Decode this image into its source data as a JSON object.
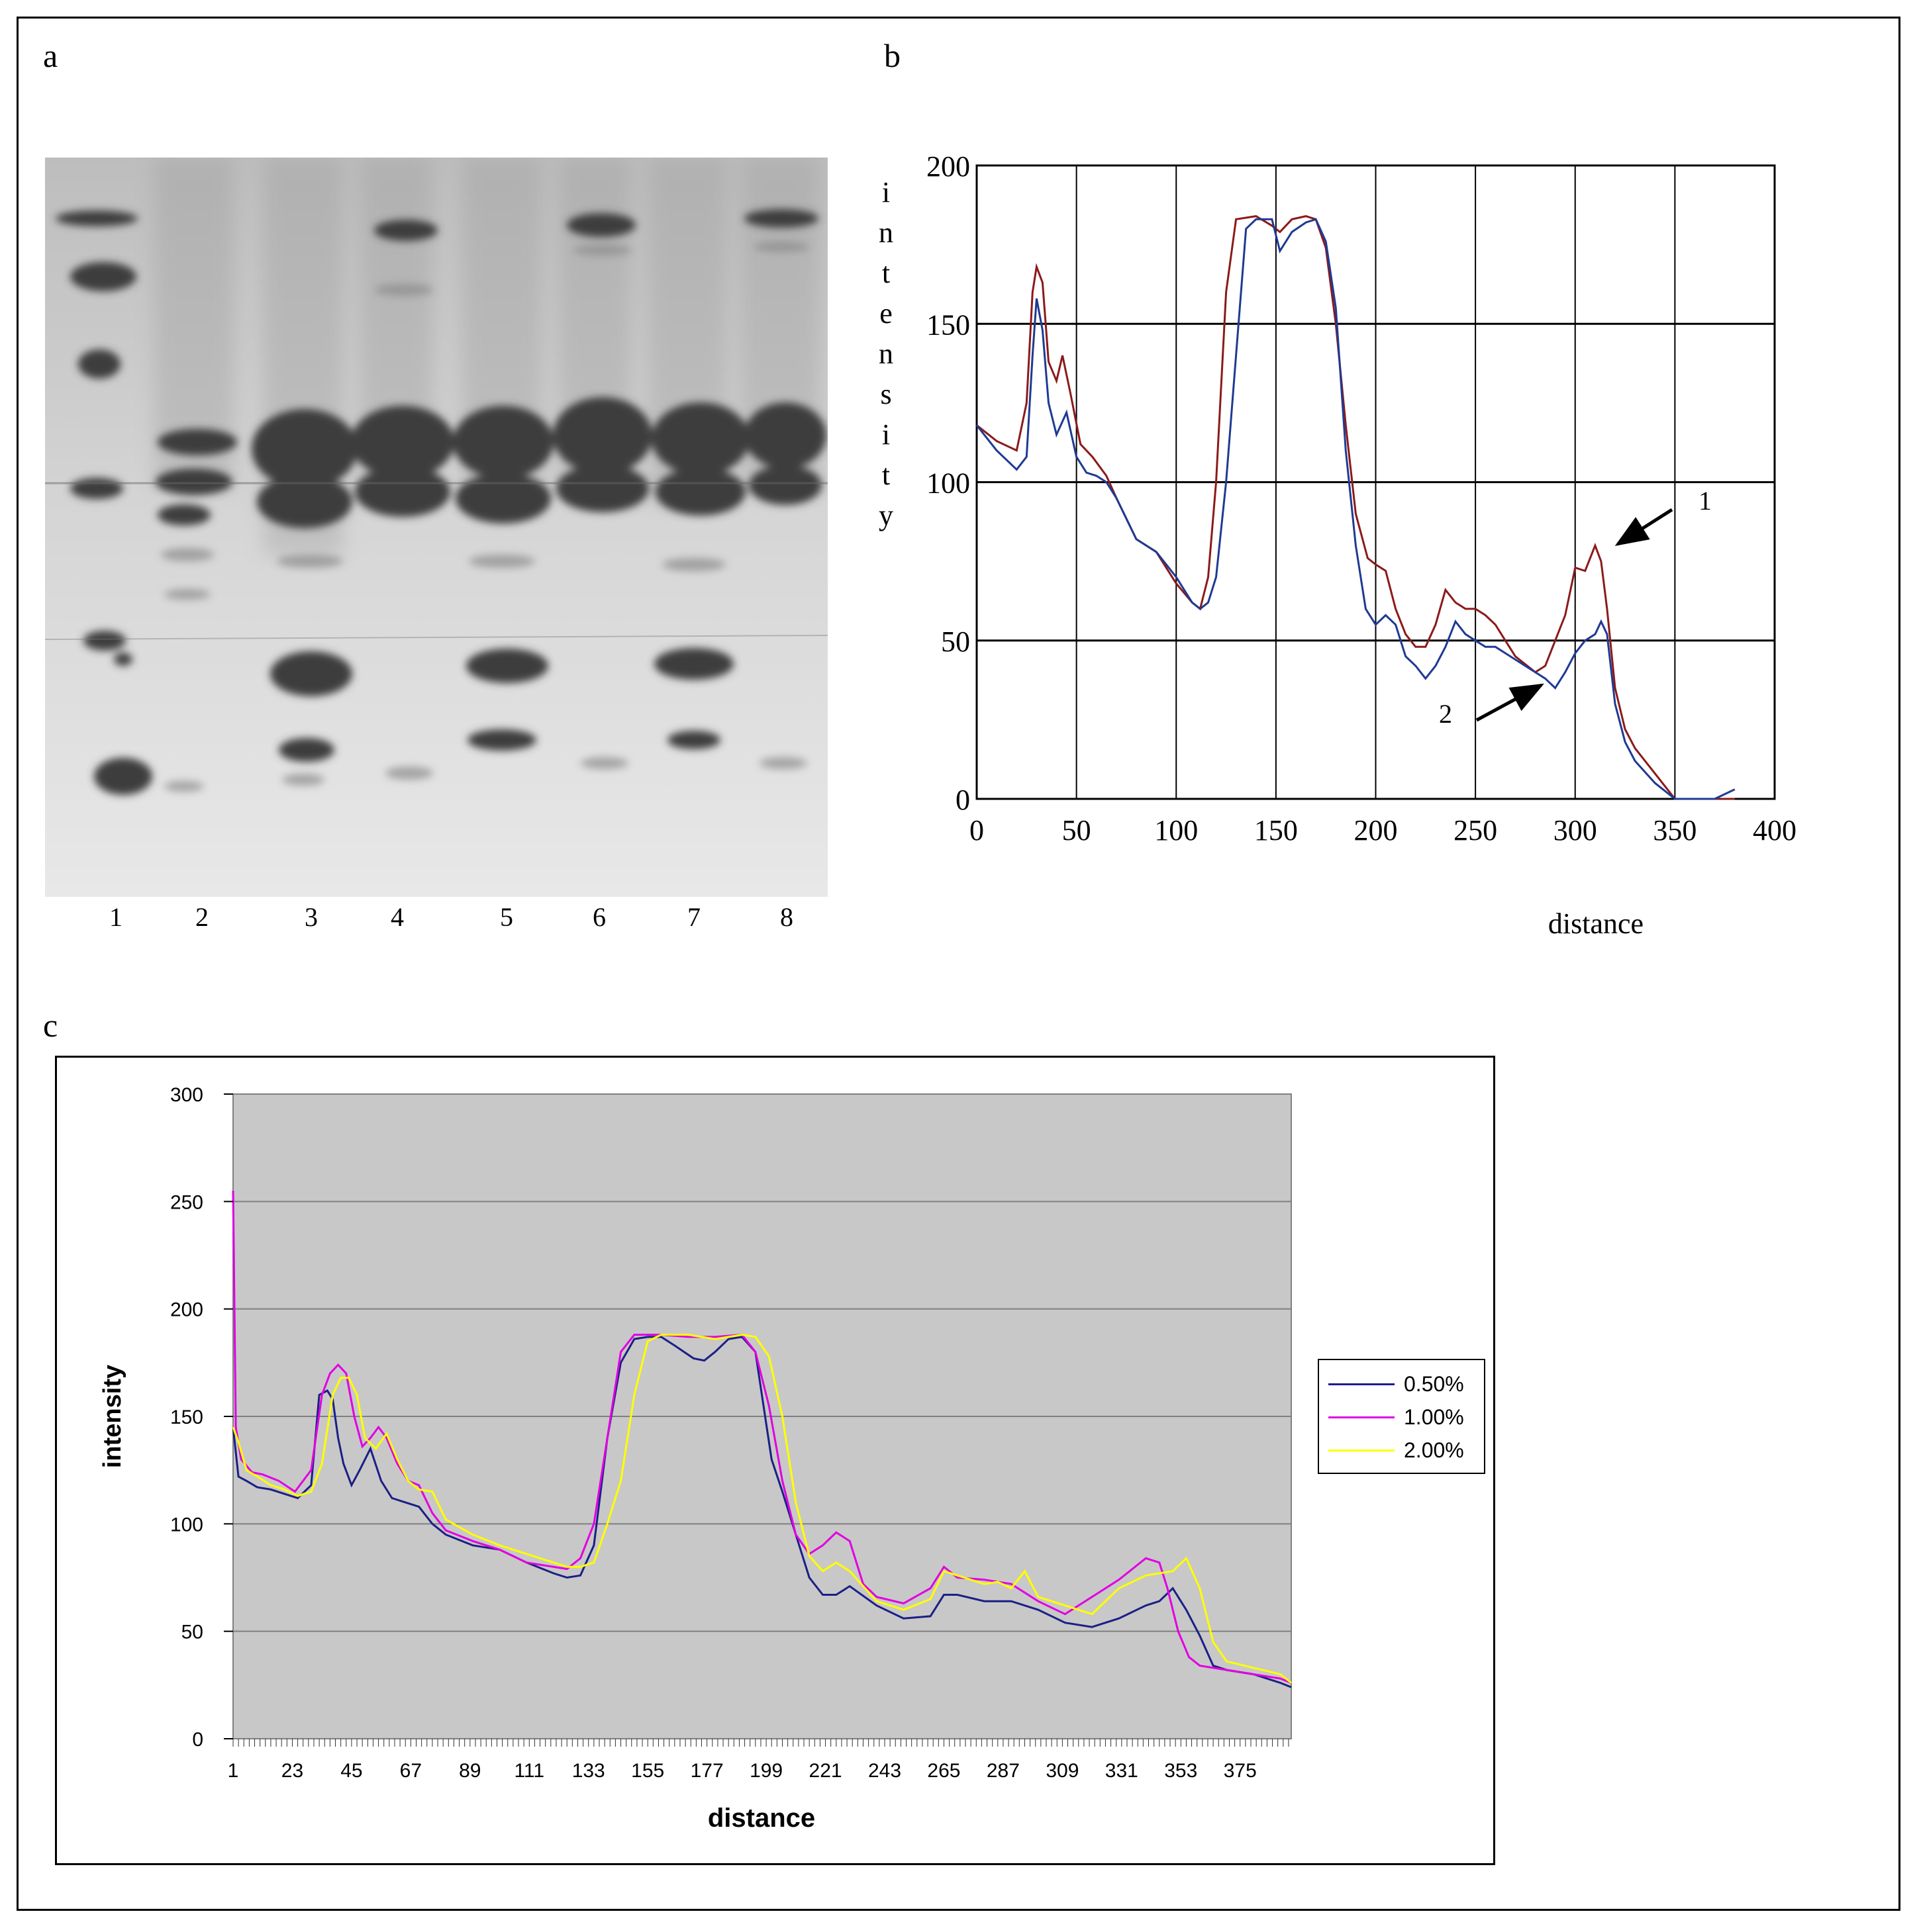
{
  "panels": {
    "a": "a",
    "b": "b",
    "c": "c"
  },
  "gel": {
    "lane_labels": [
      "1",
      "2",
      "3",
      "4",
      "5",
      "6",
      "7",
      "8"
    ]
  },
  "chart_data": [
    {
      "type": "line",
      "panel": "b",
      "title": "",
      "xlabel": "distance",
      "ylabel": "intensity",
      "xlim": [
        0,
        400
      ],
      "ylim": [
        0,
        200
      ],
      "xticks": [
        0,
        50,
        100,
        150,
        200,
        250,
        300,
        350,
        400
      ],
      "yticks": [
        0,
        50,
        100,
        150,
        200
      ],
      "grid": true,
      "annotations": [
        {
          "text": "1",
          "points_to": "series 1 peak near x=315"
        },
        {
          "text": "2",
          "points_to": "series 2 near x=285"
        }
      ],
      "series": [
        {
          "name": "1",
          "color": "#8b1a1a",
          "x": [
            0,
            10,
            20,
            25,
            28,
            30,
            33,
            36,
            40,
            43,
            47,
            52,
            58,
            65,
            70,
            80,
            90,
            100,
            108,
            112,
            116,
            120,
            125,
            130,
            140,
            148,
            152,
            158,
            165,
            170,
            175,
            180,
            185,
            190,
            196,
            200,
            205,
            210,
            215,
            220,
            225,
            230,
            235,
            240,
            245,
            250,
            255,
            260,
            265,
            270,
            280,
            285,
            290,
            295,
            300,
            305,
            310,
            313,
            316,
            320,
            325,
            330,
            340,
            350,
            360,
            370,
            380
          ],
          "y": [
            118,
            113,
            110,
            125,
            160,
            168,
            163,
            138,
            132,
            140,
            128,
            112,
            108,
            102,
            95,
            82,
            78,
            68,
            62,
            60,
            70,
            100,
            160,
            183,
            184,
            181,
            179,
            183,
            184,
            183,
            174,
            150,
            118,
            90,
            76,
            74,
            72,
            60,
            52,
            48,
            48,
            55,
            66,
            62,
            60,
            60,
            58,
            55,
            50,
            45,
            40,
            42,
            50,
            58,
            73,
            72,
            80,
            75,
            60,
            35,
            22,
            16,
            8,
            0,
            0,
            0,
            0
          ]
        },
        {
          "name": "2",
          "color": "#1f3a93",
          "x": [
            0,
            10,
            20,
            25,
            28,
            30,
            33,
            36,
            40,
            45,
            50,
            55,
            60,
            65,
            70,
            80,
            90,
            100,
            108,
            112,
            116,
            120,
            125,
            130,
            135,
            140,
            148,
            152,
            158,
            165,
            170,
            175,
            180,
            185,
            190,
            195,
            200,
            205,
            210,
            215,
            220,
            225,
            230,
            235,
            240,
            245,
            250,
            255,
            260,
            265,
            270,
            280,
            285,
            290,
            295,
            300,
            305,
            310,
            313,
            316,
            320,
            325,
            330,
            340,
            350,
            360,
            370,
            380
          ],
          "y": [
            118,
            110,
            104,
            108,
            140,
            158,
            148,
            125,
            115,
            122,
            108,
            103,
            102,
            100,
            95,
            82,
            78,
            70,
            62,
            60,
            62,
            70,
            100,
            140,
            180,
            183,
            183,
            173,
            179,
            182,
            183,
            176,
            155,
            110,
            80,
            60,
            55,
            58,
            55,
            45,
            42,
            38,
            42,
            48,
            56,
            52,
            50,
            48,
            48,
            46,
            44,
            40,
            38,
            35,
            40,
            46,
            50,
            52,
            56,
            52,
            30,
            18,
            12,
            5,
            0,
            0,
            0,
            3
          ]
        }
      ]
    },
    {
      "type": "line",
      "panel": "c",
      "title": "",
      "xlabel": "distance",
      "ylabel": "intensity",
      "xlim": [
        1,
        394
      ],
      "ylim": [
        0,
        300
      ],
      "xticks": [
        1,
        23,
        45,
        67,
        89,
        111,
        133,
        155,
        177,
        199,
        221,
        243,
        265,
        287,
        309,
        331,
        353,
        375
      ],
      "yticks": [
        0,
        50,
        100,
        150,
        200,
        250,
        300
      ],
      "grid": true,
      "legend": "right",
      "series": [
        {
          "name": "0.50%",
          "color": "#1b1f86",
          "x": [
            1,
            3,
            6,
            10,
            15,
            20,
            25,
            30,
            33,
            36,
            38,
            40,
            42,
            45,
            48,
            52,
            56,
            60,
            65,
            70,
            75,
            80,
            90,
            100,
            110,
            120,
            125,
            130,
            135,
            140,
            145,
            150,
            155,
            160,
            165,
            172,
            176,
            180,
            185,
            190,
            195,
            198,
            201,
            205,
            210,
            215,
            220,
            225,
            230,
            240,
            250,
            260,
            265,
            270,
            280,
            290,
            300,
            310,
            320,
            330,
            340,
            345,
            350,
            355,
            360,
            365,
            370,
            380,
            390,
            394
          ],
          "y": [
            145,
            122,
            120,
            117,
            116,
            114,
            112,
            118,
            160,
            162,
            158,
            140,
            128,
            118,
            125,
            135,
            120,
            112,
            110,
            108,
            100,
            95,
            90,
            88,
            82,
            77,
            75,
            76,
            90,
            140,
            175,
            186,
            187,
            187,
            183,
            177,
            176,
            180,
            186,
            187,
            180,
            155,
            130,
            115,
            95,
            75,
            67,
            67,
            71,
            62,
            56,
            57,
            67,
            67,
            64,
            64,
            60,
            54,
            52,
            56,
            62,
            64,
            70,
            60,
            48,
            34,
            32,
            30,
            26,
            24
          ]
        },
        {
          "name": "1.00%",
          "color": "#e100e1",
          "x": [
            1,
            2,
            4,
            8,
            12,
            18,
            24,
            30,
            34,
            37,
            40,
            43,
            46,
            49,
            52,
            55,
            58,
            62,
            66,
            70,
            75,
            80,
            90,
            100,
            110,
            120,
            125,
            130,
            135,
            140,
            145,
            150,
            155,
            160,
            170,
            180,
            190,
            195,
            200,
            205,
            210,
            215,
            220,
            225,
            230,
            235,
            240,
            250,
            260,
            265,
            270,
            280,
            290,
            300,
            310,
            320,
            330,
            340,
            345,
            348,
            352,
            356,
            360,
            370,
            380,
            390,
            394
          ],
          "y": [
            255,
            145,
            130,
            124,
            123,
            120,
            115,
            125,
            160,
            170,
            174,
            170,
            150,
            136,
            140,
            145,
            140,
            128,
            120,
            118,
            105,
            97,
            92,
            88,
            82,
            80,
            79,
            84,
            100,
            140,
            180,
            188,
            188,
            188,
            187,
            187,
            188,
            180,
            155,
            120,
            95,
            86,
            90,
            96,
            92,
            72,
            66,
            63,
            70,
            80,
            75,
            74,
            72,
            64,
            58,
            66,
            74,
            84,
            82,
            70,
            50,
            38,
            34,
            32,
            30,
            28,
            26
          ]
        },
        {
          "name": "2.00%",
          "color": "#ffff00",
          "x": [
            1,
            3,
            6,
            10,
            15,
            20,
            25,
            30,
            34,
            38,
            41,
            44,
            47,
            50,
            54,
            58,
            62,
            66,
            70,
            75,
            80,
            90,
            100,
            110,
            120,
            125,
            130,
            135,
            140,
            145,
            150,
            155,
            160,
            170,
            180,
            190,
            195,
            200,
            205,
            210,
            215,
            220,
            225,
            230,
            240,
            250,
            260,
            265,
            270,
            280,
            285,
            290,
            295,
            300,
            310,
            320,
            330,
            340,
            350,
            355,
            360,
            365,
            370,
            380,
            390,
            394
          ],
          "y": [
            145,
            138,
            125,
            122,
            118,
            116,
            113,
            115,
            128,
            160,
            168,
            168,
            160,
            140,
            135,
            142,
            130,
            120,
            116,
            115,
            102,
            95,
            90,
            86,
            82,
            80,
            80,
            82,
            100,
            120,
            160,
            185,
            188,
            188,
            186,
            188,
            187,
            178,
            150,
            110,
            85,
            78,
            82,
            78,
            64,
            60,
            65,
            78,
            76,
            72,
            73,
            70,
            78,
            66,
            62,
            58,
            70,
            76,
            78,
            84,
            70,
            45,
            36,
            33,
            30,
            26
          ]
        }
      ]
    }
  ]
}
